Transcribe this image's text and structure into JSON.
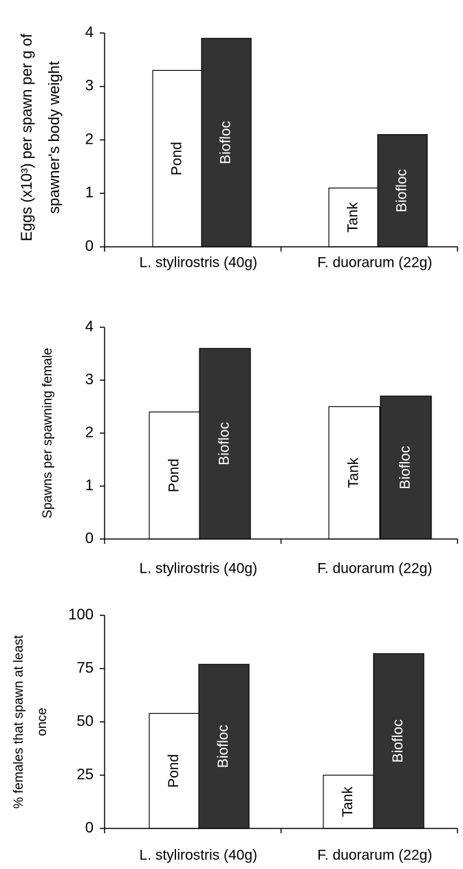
{
  "chart_data": [
    {
      "type": "bar",
      "ylabel": [
        "Eggs (x10³) per spawn per g of",
        "spawner's body weight"
      ],
      "categories": [
        "L. stylirostris (40g)",
        "F. duorarum (22g)"
      ],
      "groups": [
        {
          "bars": [
            {
              "label": "Pond",
              "value": 3.3,
              "color": "#ffffff"
            },
            {
              "label": "Biofloc",
              "value": 3.9,
              "color": "#333333"
            }
          ]
        },
        {
          "bars": [
            {
              "label": "Tank",
              "value": 1.1,
              "color": "#ffffff"
            },
            {
              "label": "Biofloc",
              "value": 2.1,
              "color": "#333333"
            }
          ]
        }
      ],
      "ylim": [
        0,
        4
      ],
      "yticks": [
        0,
        1,
        2,
        3,
        4
      ]
    },
    {
      "type": "bar",
      "ylabel": [
        "Spawns per spawning female"
      ],
      "categories": [
        "L. stylirostris (40g)",
        "F. duorarum (22g)"
      ],
      "groups": [
        {
          "bars": [
            {
              "label": "Pond",
              "value": 2.4,
              "color": "#ffffff"
            },
            {
              "label": "Biofloc",
              "value": 3.6,
              "color": "#333333"
            }
          ]
        },
        {
          "bars": [
            {
              "label": "Tank",
              "value": 2.5,
              "color": "#ffffff"
            },
            {
              "label": "Biofloc",
              "value": 2.7,
              "color": "#333333"
            }
          ]
        }
      ],
      "ylim": [
        0,
        4
      ],
      "yticks": [
        0,
        1,
        2,
        3,
        4
      ]
    },
    {
      "type": "bar",
      "ylabel": [
        "% females that spawn at least",
        "once"
      ],
      "categories": [
        "L. stylirostris (40g)",
        "F. duorarum (22g)"
      ],
      "groups": [
        {
          "bars": [
            {
              "label": "Pond",
              "value": 54,
              "color": "#ffffff"
            },
            {
              "label": "Biofloc",
              "value": 77,
              "color": "#333333"
            }
          ]
        },
        {
          "bars": [
            {
              "label": "Tank",
              "value": 25,
              "color": "#ffffff"
            },
            {
              "label": "Biofloc",
              "value": 82,
              "color": "#333333"
            }
          ]
        }
      ],
      "ylim": [
        0,
        100
      ],
      "yticks": [
        0,
        25,
        50,
        75,
        100
      ]
    }
  ]
}
